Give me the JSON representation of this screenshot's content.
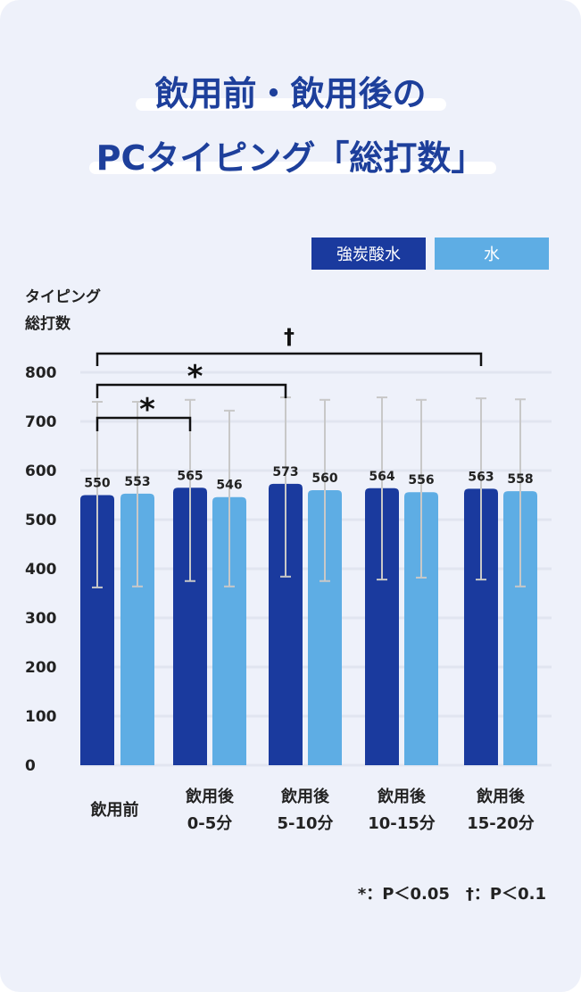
{
  "title_line1": "飲用前・飲用後の",
  "title_line2": "PCタイピング「総打数」",
  "colors": {
    "carbonated": "#1a3a9e",
    "water": "#5eade4",
    "background": "#eef1fa",
    "grid": "#e1e5f0",
    "error_bar": "#c8c8c8"
  },
  "chart_data": {
    "type": "bar",
    "ylabel_line1": "タイピング",
    "ylabel_line2": "総打数",
    "ylim": [
      0,
      800
    ],
    "yticks": [
      "0",
      "100",
      "200",
      "300",
      "400",
      "500",
      "600",
      "700",
      "800"
    ],
    "grid": true,
    "legend_placement": "top-right",
    "categories": [
      {
        "line1": "飲用前",
        "line2": ""
      },
      {
        "line1": "飲用後",
        "line2": "0-5分"
      },
      {
        "line1": "飲用後",
        "line2": "5-10分"
      },
      {
        "line1": "飲用後",
        "line2": "10-15分"
      },
      {
        "line1": "飲用後",
        "line2": "15-20分"
      }
    ],
    "series": [
      {
        "name": "強炭酸水",
        "values": [
          550,
          565,
          573,
          564,
          563
        ],
        "error_low": [
          362,
          375,
          384,
          378,
          378
        ],
        "error_high": [
          740,
          744,
          749,
          749,
          747
        ]
      },
      {
        "name": "水",
        "values": [
          553,
          546,
          560,
          556,
          558
        ],
        "error_low": [
          364,
          364,
          375,
          382,
          364
        ],
        "error_high": [
          740,
          722,
          744,
          744,
          745
        ]
      }
    ],
    "significance": [
      {
        "from": 0,
        "to": 1,
        "mark": "*"
      },
      {
        "from": 0,
        "to": 2,
        "mark": "*"
      },
      {
        "from": 0,
        "to": 4,
        "mark": "†"
      }
    ],
    "footnote": "*：P＜0.05　†：P＜0.1"
  }
}
